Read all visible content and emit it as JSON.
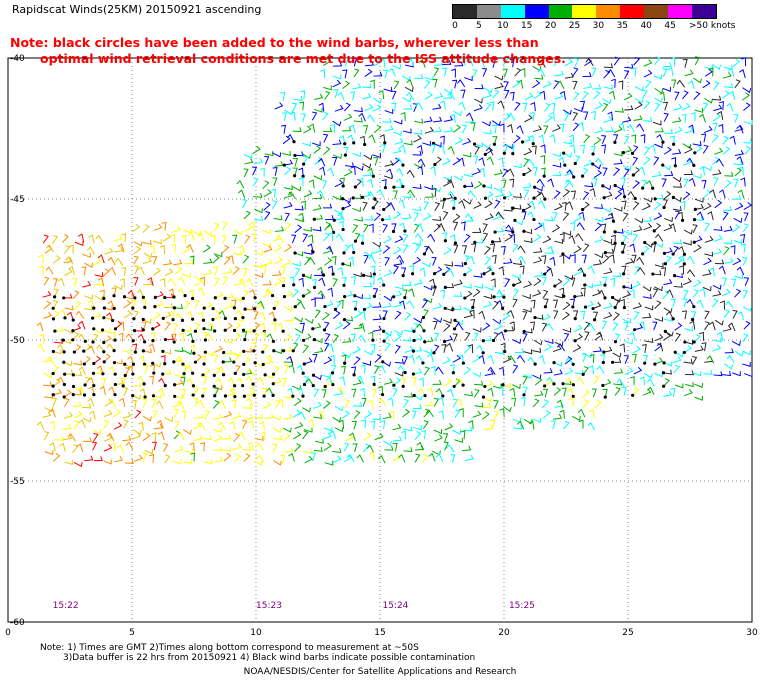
{
  "title": "Rapidscat Winds(25KM) 20150921 ascending",
  "note_lines": [
    "Note: black circles have been added to the wind barbs, wherever less than",
    "optimal wind retrieval conditions are met due to the ISS attitude changes."
  ],
  "legend": {
    "labels": [
      "0",
      "5",
      "10",
      "15",
      "20",
      "25",
      "30",
      "35",
      "40",
      "45",
      ">50 knots"
    ],
    "colors": [
      "#2a2a2a",
      "#8c8c8c",
      "#00ffff",
      "#0000ff",
      "#00b000",
      "#ffff00",
      "#ff8c00",
      "#ff0000",
      "#8b4513",
      "#ff00ff",
      "#3c0096"
    ]
  },
  "axes": {
    "x_ticks": [
      "0",
      "5",
      "10",
      "15",
      "20",
      "25",
      "30"
    ],
    "y_ticks": [
      "-40",
      "-45",
      "-50",
      "-55",
      "-60"
    ],
    "x_range": [
      0,
      30
    ],
    "y_range": [
      -40,
      -60
    ]
  },
  "time_labels": [
    {
      "text": "15:22",
      "lon": 1.8
    },
    {
      "text": "15:23",
      "lon": 10.0
    },
    {
      "text": "15:24",
      "lon": 15.1
    },
    {
      "text": "15:25",
      "lon": 20.2
    }
  ],
  "time_label_color": "#800080",
  "footnotes": [
    "Note: 1) Times are GMT 2)Times along bottom correspond to measurement at ~50S",
    "3)Data buffer is 22 hrs from 20150921 4) Black wind barbs indicate possible contamination"
  ],
  "credit": "NOAA/NESDIS/Center for Satellite Applications and Research"
}
